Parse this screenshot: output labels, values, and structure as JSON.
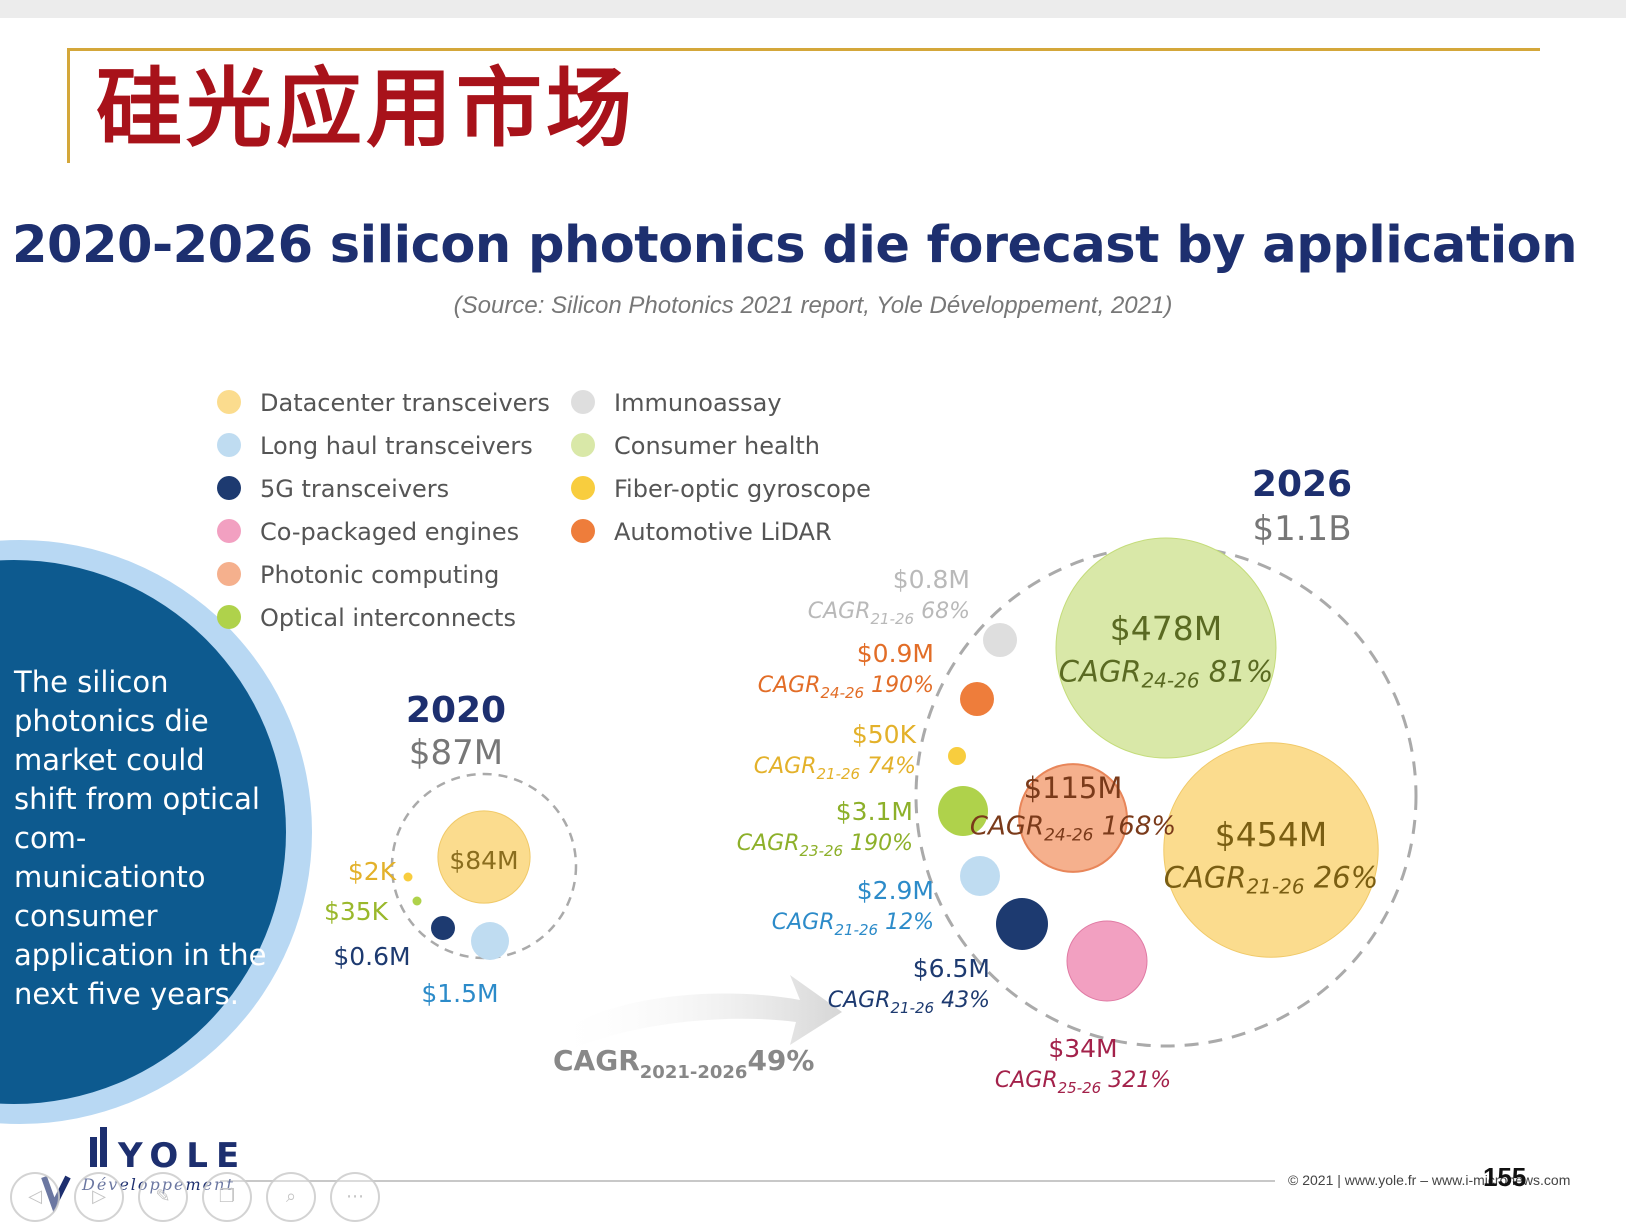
{
  "page_title": "硅光应用市场",
  "chart_data": {
    "type": "bubble",
    "title": "2020-2026 silicon photonics die forecast by application",
    "subtitle": "(Source: Silicon Photonics 2021 report, Yole Développement, 2021)",
    "legend_placement": "top-left",
    "legend": [
      {
        "name": "Datacenter transceivers",
        "color": "#fbdc8e"
      },
      {
        "name": "Long haul transceivers",
        "color": "#bfdcf1"
      },
      {
        "name": "5G transceivers",
        "color": "#1d3a70"
      },
      {
        "name": "Co-packaged engines",
        "color": "#f2a0c1"
      },
      {
        "name": "Photonic computing",
        "color": "#f5b08d"
      },
      {
        "name": "Optical interconnects",
        "color": "#afd24b"
      },
      {
        "name": "Immunoassay",
        "color": "#dedede"
      },
      {
        "name": "Consumer health",
        "color": "#d9e8a8"
      },
      {
        "name": "Fiber-optic gyroscope",
        "color": "#f8cd3e"
      },
      {
        "name": "Automotive LiDAR",
        "color": "#ee7d3b"
      }
    ],
    "groups": [
      {
        "year": "2020",
        "total": "$87M",
        "bubbles": [
          {
            "series": "Datacenter transceivers",
            "label": "$84M",
            "value_musd": 84
          },
          {
            "series": "Long haul transceivers",
            "label": "$1.5M",
            "value_musd": 1.5
          },
          {
            "series": "5G transceivers",
            "label": "$0.6M",
            "value_musd": 0.6
          },
          {
            "series": "Fiber-optic gyroscope",
            "label": "$2K",
            "value_musd": 0.002
          },
          {
            "series": "Optical interconnects",
            "label": "$35K",
            "value_musd": 0.035
          }
        ]
      },
      {
        "year": "2026",
        "total": "$1.1B",
        "bubbles": [
          {
            "series": "Consumer health",
            "label": "$478M",
            "cagr_sub": "24-26",
            "cagr_pct": "81%",
            "value_musd": 478
          },
          {
            "series": "Datacenter transceivers",
            "label": "$454M",
            "cagr_sub": "21-26",
            "cagr_pct": "26%",
            "value_musd": 454
          },
          {
            "series": "Photonic computing",
            "label": "$115M",
            "cagr_sub": "24-26",
            "cagr_pct": "168%",
            "value_musd": 115
          },
          {
            "series": "Co-packaged engines",
            "label": "$34M",
            "cagr_sub": "25-26",
            "cagr_pct": "321%",
            "value_musd": 34
          },
          {
            "series": "5G transceivers",
            "label": "$6.5M",
            "cagr_sub": "21-26",
            "cagr_pct": "43%",
            "value_musd": 6.5
          },
          {
            "series": "Optical interconnects",
            "label": "$3.1M",
            "cagr_sub": "23-26",
            "cagr_pct": "190%",
            "value_musd": 3.1
          },
          {
            "series": "Long haul transceivers",
            "label": "$2.9M",
            "cagr_sub": "21-26",
            "cagr_pct": "12%",
            "value_musd": 2.9
          },
          {
            "series": "Automotive LiDAR",
            "label": "$0.9M",
            "cagr_sub": "24-26",
            "cagr_pct": "190%",
            "value_musd": 0.9
          },
          {
            "series": "Immunoassay",
            "label": "$0.8M",
            "cagr_sub": "21-26",
            "cagr_pct": "68%",
            "value_musd": 0.8
          },
          {
            "series": "Fiber-optic gyroscope",
            "label": "$50K",
            "cagr_sub": "21-26",
            "cagr_pct": "74%",
            "value_musd": 0.05
          }
        ]
      }
    ],
    "overall_cagr": {
      "label": "CAGR",
      "sub": "2021-2026",
      "value": "49%"
    }
  },
  "callout_text": "The silicon photonics die market could shift from optical com-municationto consumer application in the next five years.",
  "footer": {
    "logo_word": "YOLE",
    "logo_sub": "Développement",
    "copyright": "© 2021 | www.yole.fr – www.i-micronews.com",
    "page_number": "155"
  },
  "nav_icons": [
    "prev-icon",
    "next-icon",
    "pen-icon",
    "pages-icon",
    "zoom-icon",
    "more-icon"
  ]
}
